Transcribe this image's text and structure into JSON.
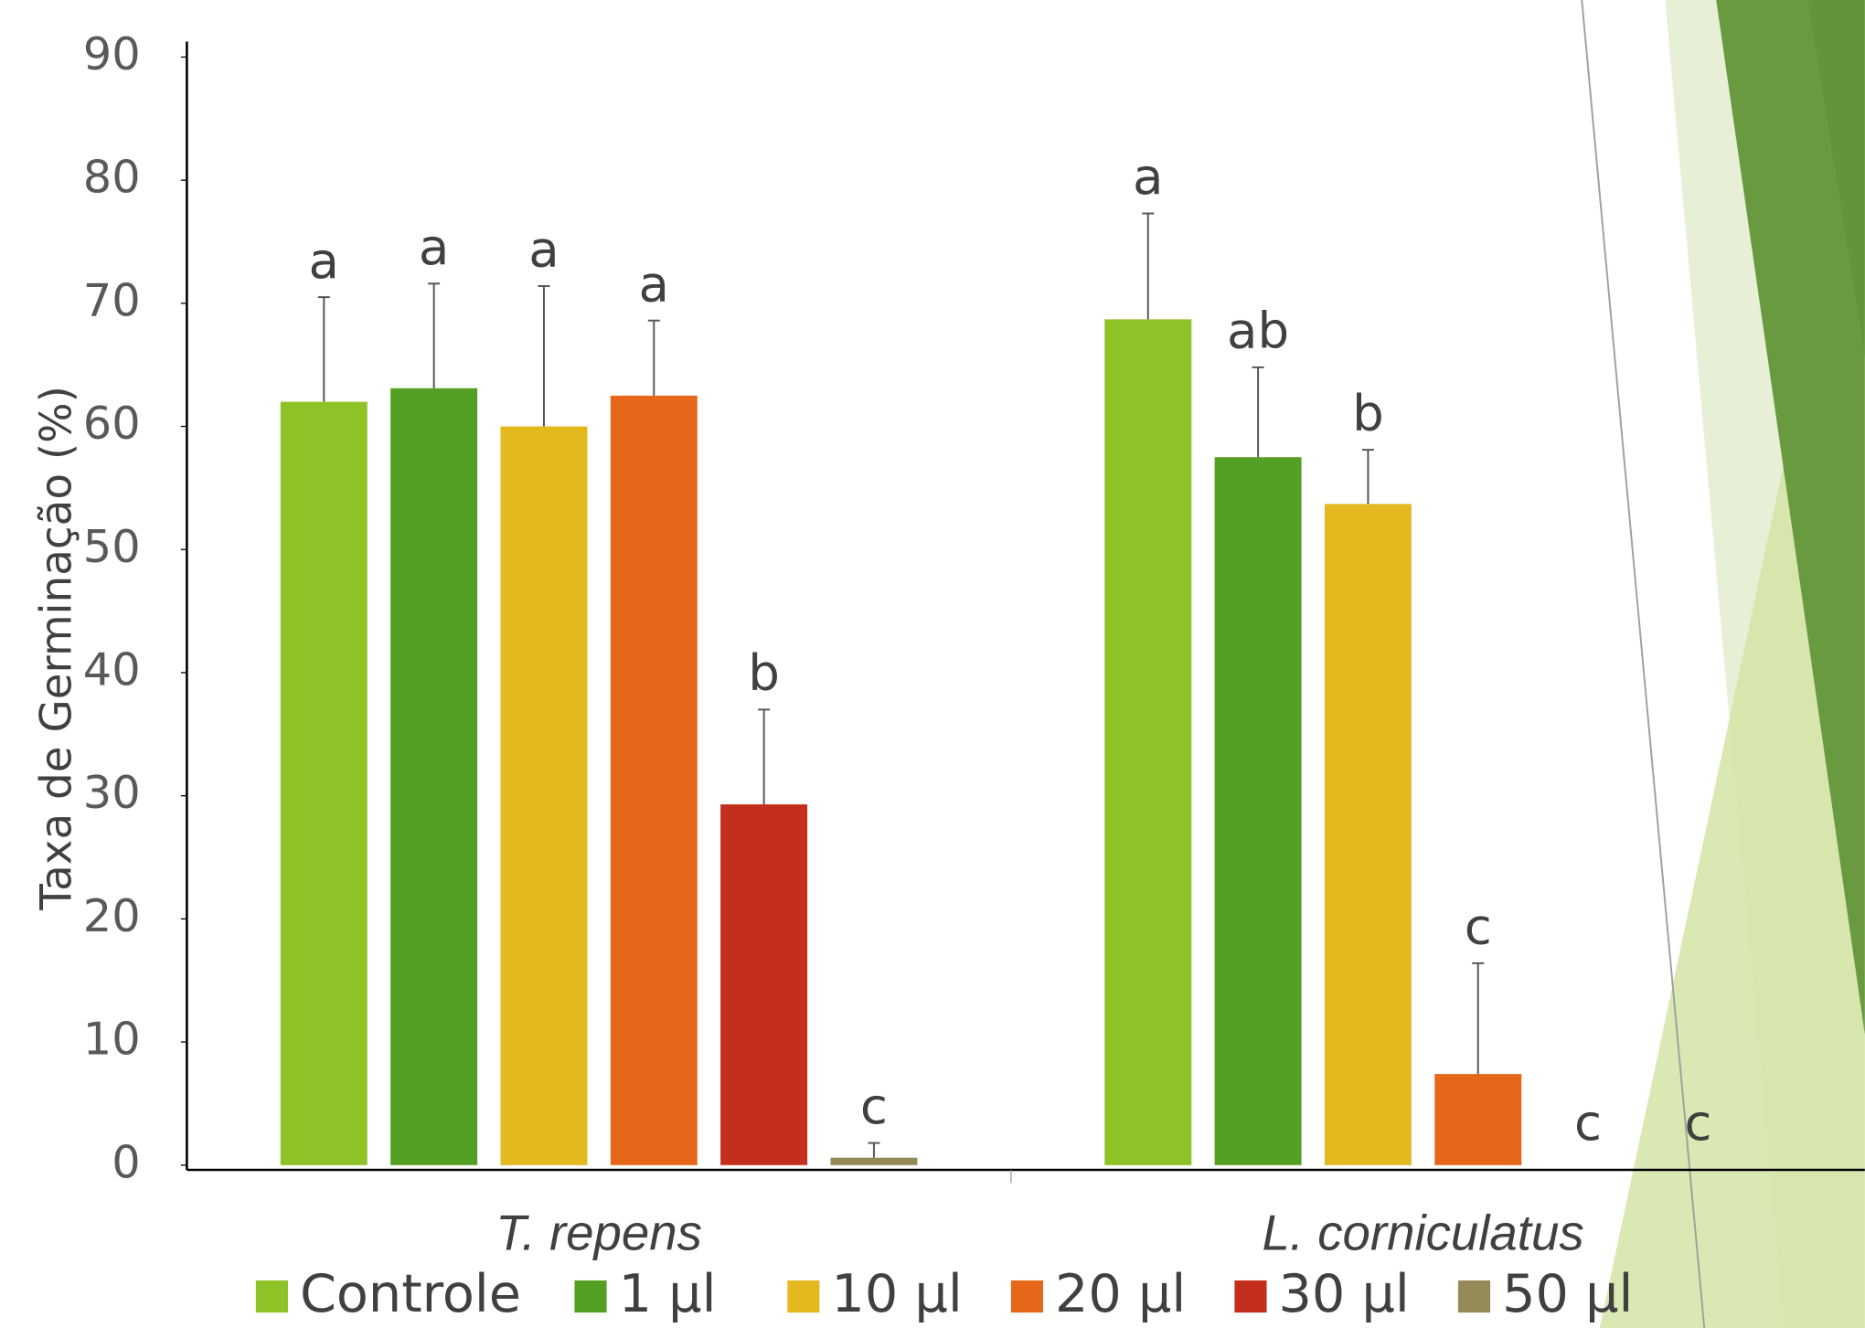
{
  "chart_data": {
    "type": "bar",
    "y_label": "Taxa de Germinação (%)",
    "categories": [
      "T. repens",
      "L. corniculatus"
    ],
    "series": [
      {
        "name": "Controle",
        "color": "#8fc226",
        "values": [
          62,
          68.7
        ],
        "errors": [
          8.5,
          8.6
        ],
        "value_labels": [
          "a",
          "a"
        ]
      },
      {
        "name": "1  µl",
        "color": "#54a024",
        "values": [
          63.1,
          57.5
        ],
        "errors": [
          8.5,
          7.3
        ],
        "value_labels": [
          "a",
          "ab"
        ]
      },
      {
        "name": "10 µl",
        "color": "#e4b920",
        "values": [
          60,
          53.7
        ],
        "errors": [
          11.4,
          4.4
        ],
        "value_labels": [
          "a",
          "b"
        ]
      },
      {
        "name": "20 µl",
        "color": "#e6671a",
        "values": [
          62.5,
          7.4
        ],
        "errors": [
          6.1,
          9
        ],
        "value_labels": [
          "a",
          "c"
        ]
      },
      {
        "name": "30 µl",
        "color": "#c42e1c",
        "values": [
          29.3,
          0
        ],
        "errors": [
          7.7,
          0
        ],
        "value_labels": [
          "b",
          "c"
        ]
      },
      {
        "name": "50 µl",
        "color": "#948a58",
        "values": [
          0.6,
          0
        ],
        "errors": [
          1.2,
          0
        ],
        "value_labels": [
          "c",
          "c"
        ]
      }
    ],
    "ylim": [
      0,
      90
    ],
    "yticks": [
      0,
      10,
      20,
      30,
      40,
      50,
      60,
      70,
      80,
      90
    ]
  }
}
